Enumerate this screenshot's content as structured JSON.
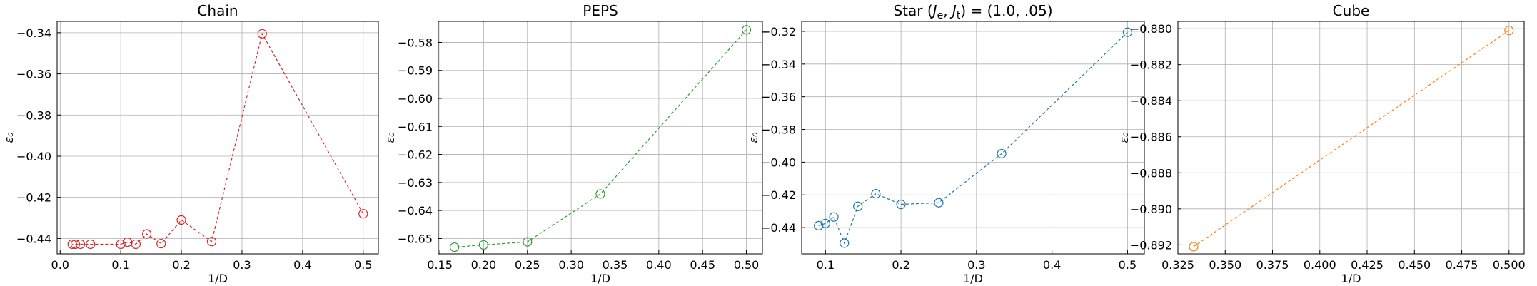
{
  "chart_data": [
    {
      "type": "line",
      "title": "Chain",
      "xlabel": "1/D",
      "ylabel": "ε₀",
      "color": "#d62728",
      "xlim": [
        -0.005,
        0.525
      ],
      "ylim": [
        -0.4475,
        -0.3345
      ],
      "xticks": [
        0.0,
        0.1,
        0.2,
        0.3,
        0.4,
        0.5
      ],
      "xtick_labels": [
        "0.0",
        "0.1",
        "0.2",
        "0.3",
        "0.4",
        "0.5"
      ],
      "yticks": [
        -0.44,
        -0.42,
        -0.4,
        -0.38,
        -0.36,
        -0.34
      ],
      "ytick_labels": [
        "−0.44",
        "−0.42",
        "−0.40",
        "−0.38",
        "−0.36",
        "−0.34"
      ],
      "grid": true,
      "series": [
        {
          "x": [
            0.5,
            0.3333,
            0.25,
            0.2,
            0.1667,
            0.1429,
            0.125,
            0.1111,
            0.1,
            0.05,
            0.0333,
            0.025,
            0.02
          ],
          "y": [
            -0.428,
            -0.3405,
            -0.4415,
            -0.431,
            -0.4425,
            -0.4378,
            -0.4428,
            -0.4418,
            -0.4428,
            -0.4428,
            -0.4428,
            -0.4428,
            -0.4428
          ]
        }
      ]
    },
    {
      "type": "line",
      "title": "PEPS",
      "xlabel": "1/D",
      "ylabel": "ε₀",
      "color": "#2ca02c",
      "xlim": [
        0.1483,
        0.5183
      ],
      "ylim": [
        -0.6555,
        -0.5725
      ],
      "xticks": [
        0.15,
        0.2,
        0.25,
        0.3,
        0.35,
        0.4,
        0.45,
        0.5
      ],
      "xtick_labels": [
        "0.15",
        "0.20",
        "0.25",
        "0.30",
        "0.35",
        "0.40",
        "0.45",
        "0.50"
      ],
      "yticks": [
        -0.65,
        -0.64,
        -0.63,
        -0.62,
        -0.61,
        -0.6,
        -0.59,
        -0.58
      ],
      "ytick_labels": [
        "−0.65",
        "−0.64",
        "−0.63",
        "−0.62",
        "−0.61",
        "−0.60",
        "−0.59",
        "−0.58"
      ],
      "grid": true,
      "series": [
        {
          "x": [
            0.5,
            0.3333,
            0.25,
            0.2,
            0.1667
          ],
          "y": [
            -0.5755,
            -0.6341,
            -0.6512,
            -0.6523,
            -0.6531
          ]
        }
      ]
    },
    {
      "type": "line",
      "title": "Star (J_e, J_t) = (1.0, .05)",
      "title_parts": [
        "Star (",
        "J",
        "e",
        ", ",
        "J",
        "t",
        ") = (1.0, .05)"
      ],
      "xlabel": "1/D",
      "ylabel": "ε₀",
      "color": "#1f77b4",
      "xlim": [
        0.0685,
        0.5223
      ],
      "ylim": [
        -0.4561,
        -0.3139
      ],
      "xticks": [
        0.1,
        0.2,
        0.3,
        0.4,
        0.5
      ],
      "xtick_labels": [
        "0.1",
        "0.2",
        "0.3",
        "0.4",
        "0.5"
      ],
      "yticks": [
        -0.44,
        -0.42,
        -0.4,
        -0.38,
        -0.36,
        -0.34,
        -0.32
      ],
      "ytick_labels": [
        "−0.44",
        "−0.42",
        "−0.40",
        "−0.38",
        "−0.36",
        "−0.34",
        "−0.32"
      ],
      "grid": true,
      "series": [
        {
          "x": [
            0.5,
            0.3333,
            0.25,
            0.2,
            0.1667,
            0.1429,
            0.125,
            0.1111,
            0.1,
            0.0909
          ],
          "y": [
            -0.3205,
            -0.3948,
            -0.4248,
            -0.4258,
            -0.4193,
            -0.427,
            -0.4495,
            -0.4335,
            -0.4375,
            -0.4388
          ]
        }
      ]
    },
    {
      "type": "line",
      "title": "Cube",
      "xlabel": "1/D",
      "ylabel": "ε₀",
      "color": "#ff7f0e",
      "xlim": [
        0.325,
        0.508
      ],
      "ylim": [
        -0.8925,
        -0.8796
      ],
      "xticks": [
        0.325,
        0.35,
        0.375,
        0.4,
        0.425,
        0.45,
        0.475,
        0.5
      ],
      "xtick_labels": [
        "0.325",
        "0.350",
        "0.375",
        "0.400",
        "0.425",
        "0.450",
        "0.475",
        "0.500"
      ],
      "yticks": [
        -0.892,
        -0.89,
        -0.888,
        -0.886,
        -0.884,
        -0.882,
        -0.88
      ],
      "ytick_labels": [
        "−0.892",
        "−0.890",
        "−0.888",
        "−0.886",
        "−0.884",
        "−0.882",
        "−0.880"
      ],
      "grid": true,
      "series": [
        {
          "x": [
            0.5,
            0.3333
          ],
          "y": [
            -0.8801,
            -0.8921
          ]
        }
      ]
    }
  ]
}
